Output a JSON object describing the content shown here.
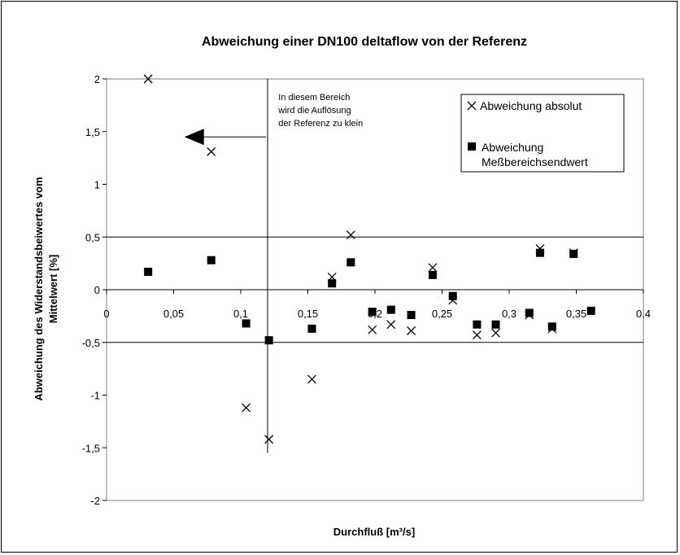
{
  "chart_data": {
    "type": "scatter",
    "title": "Abweichung einer DN100 deltaflow von der Referenz",
    "xlabel": "Durchfluß [m³/s]",
    "ylabel": [
      "Abweichung des Widerstandsbeiwertes vom",
      "Mittelwert [%]"
    ],
    "xlim": [
      0,
      0.4
    ],
    "ylim": [
      -2,
      2
    ],
    "x_ticks": [
      {
        "value": 0,
        "label": "0"
      },
      {
        "value": 0.05,
        "label": "0,05"
      },
      {
        "value": 0.1,
        "label": "0,1"
      },
      {
        "value": 0.15,
        "label": "0,15"
      },
      {
        "value": 0.2,
        "label": "0,2"
      },
      {
        "value": 0.25,
        "label": "0,25"
      },
      {
        "value": 0.3,
        "label": "0,3"
      },
      {
        "value": 0.35,
        "label": "0,35"
      },
      {
        "value": 0.4,
        "label": "0,4"
      }
    ],
    "y_ticks": [
      {
        "value": 2,
        "label": "2"
      },
      {
        "value": 1.5,
        "label": "1,5"
      },
      {
        "value": 1,
        "label": "1"
      },
      {
        "value": 0.5,
        "label": "0,5"
      },
      {
        "value": 0,
        "label": "0"
      },
      {
        "value": -0.5,
        "label": "-0,5"
      },
      {
        "value": -1,
        "label": "-1"
      },
      {
        "value": -1.5,
        "label": "-1,5"
      },
      {
        "value": -2,
        "label": "-2"
      }
    ],
    "reference_lines": [
      {
        "axis": "y",
        "value": 0.5
      },
      {
        "axis": "y",
        "value": -0.5
      },
      {
        "axis": "x",
        "value": 0.12,
        "from": -1.55,
        "to": 2.0
      }
    ],
    "annotation": {
      "lines": [
        "In diesem Bereich",
        "wird die Auflösung",
        "der Referenz zu klein"
      ],
      "anchor": [
        0.122,
        1.8
      ],
      "arrow_from": [
        0.12,
        1.45
      ],
      "arrow_to": [
        0.058,
        1.45
      ]
    },
    "legend_position": "top-right",
    "series": [
      {
        "name": "Abweichung absolut",
        "marker": "x",
        "points": [
          [
            0.031,
            2.0
          ],
          [
            0.078,
            1.31
          ],
          [
            0.104,
            -1.12
          ],
          [
            0.121,
            -1.42
          ],
          [
            0.153,
            -0.85
          ],
          [
            0.168,
            0.12
          ],
          [
            0.182,
            0.52
          ],
          [
            0.198,
            -0.38
          ],
          [
            0.212,
            -0.33
          ],
          [
            0.227,
            -0.39
          ],
          [
            0.243,
            0.21
          ],
          [
            0.258,
            -0.1
          ],
          [
            0.276,
            -0.43
          ],
          [
            0.29,
            -0.41
          ],
          [
            0.315,
            -0.24
          ],
          [
            0.323,
            0.39
          ],
          [
            0.332,
            -0.37
          ],
          [
            0.348,
            0.35
          ]
        ]
      },
      {
        "name": [
          "Abweichung",
          "Meßbereichsendwert"
        ],
        "marker": "square",
        "points": [
          [
            0.031,
            0.17
          ],
          [
            0.078,
            0.28
          ],
          [
            0.104,
            -0.32
          ],
          [
            0.121,
            -0.48
          ],
          [
            0.153,
            -0.37
          ],
          [
            0.168,
            0.06
          ],
          [
            0.182,
            0.26
          ],
          [
            0.198,
            -0.21
          ],
          [
            0.212,
            -0.19
          ],
          [
            0.227,
            -0.24
          ],
          [
            0.243,
            0.14
          ],
          [
            0.258,
            -0.06
          ],
          [
            0.276,
            -0.33
          ],
          [
            0.29,
            -0.33
          ],
          [
            0.315,
            -0.22
          ],
          [
            0.323,
            0.35
          ],
          [
            0.332,
            -0.35
          ],
          [
            0.348,
            0.34
          ],
          [
            0.361,
            -0.2
          ]
        ]
      }
    ]
  }
}
